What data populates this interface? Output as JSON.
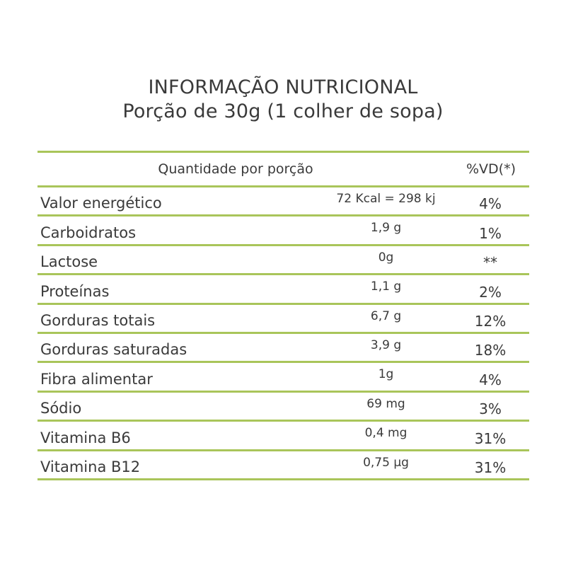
{
  "title": {
    "line1": "INFORMAÇÃO NUTRICIONAL",
    "line2": "Porção de 30g (1 colher de sopa)"
  },
  "table": {
    "header": {
      "quantity_label": "Quantidade por porção",
      "vd_label": "%VD(*)"
    },
    "rows": [
      {
        "name": "Valor energético",
        "amount": "72 Kcal = 298 kj",
        "vd": "4%"
      },
      {
        "name": "Carboidratos",
        "amount": "1,9 g",
        "vd": "1%"
      },
      {
        "name": "Lactose",
        "amount": "0g",
        "vd": "**"
      },
      {
        "name": "Proteínas",
        "amount": "1,1 g",
        "vd": "2%"
      },
      {
        "name": "Gorduras totais",
        "amount": "6,7 g",
        "vd": "12%"
      },
      {
        "name": "Gorduras saturadas",
        "amount": "3,9 g",
        "vd": "18%"
      },
      {
        "name": "Fibra alimentar",
        "amount": "1g",
        "vd": "4%"
      },
      {
        "name": "Sódio",
        "amount": "69 mg",
        "vd": "3%"
      },
      {
        "name": "Vitamina B6",
        "amount": "0,4 mg",
        "vd": "31%"
      },
      {
        "name": "Vitamina B12",
        "amount": "0,75 µg",
        "vd": "31%"
      }
    ]
  },
  "colors": {
    "rule": "#a9c55a",
    "text": "#3a3a3a"
  }
}
